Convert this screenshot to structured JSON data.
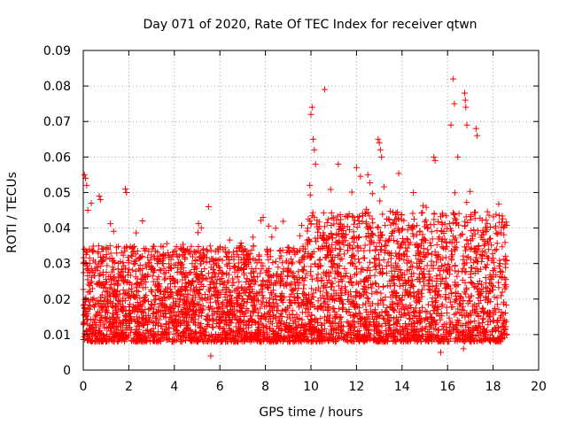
{
  "chart_data": {
    "type": "scatter",
    "title": "Day 071 of 2020, Rate Of TEC Index for receiver qtwn",
    "xlabel": "GPS time / hours",
    "ylabel": "ROTI / TECUs",
    "xlim": [
      0,
      20
    ],
    "ylim": [
      0,
      0.09
    ],
    "xticks": [
      "0",
      "2",
      "4",
      "6",
      "8",
      "10",
      "12",
      "14",
      "16",
      "18",
      "20"
    ],
    "yticks": [
      "0",
      "0.01",
      "0.02",
      "0.03",
      "0.04",
      "0.05",
      "0.06",
      "0.07",
      "0.08",
      "0.09"
    ],
    "grid": true,
    "marker": "+",
    "color": "#ff0000",
    "series": [
      {
        "name": "ROTI",
        "hour_range": [
          0,
          18.6
        ],
        "typical_band": [
          0.008,
          0.035
        ],
        "highlights": [
          {
            "x": 0.05,
            "y": 0.055
          },
          {
            "x": 0.1,
            "y": 0.054
          },
          {
            "x": 0.15,
            "y": 0.052
          },
          {
            "x": 0.2,
            "y": 0.045
          },
          {
            "x": 0.35,
            "y": 0.047
          },
          {
            "x": 0.7,
            "y": 0.049
          },
          {
            "x": 0.75,
            "y": 0.048
          },
          {
            "x": 1.85,
            "y": 0.051
          },
          {
            "x": 1.9,
            "y": 0.05
          },
          {
            "x": 2.6,
            "y": 0.042
          },
          {
            "x": 5.5,
            "y": 0.046
          },
          {
            "x": 7.9,
            "y": 0.043
          },
          {
            "x": 10.0,
            "y": 0.072
          },
          {
            "x": 10.05,
            "y": 0.074
          },
          {
            "x": 10.1,
            "y": 0.065
          },
          {
            "x": 10.15,
            "y": 0.062
          },
          {
            "x": 10.2,
            "y": 0.058
          },
          {
            "x": 10.6,
            "y": 0.079
          },
          {
            "x": 11.2,
            "y": 0.058
          },
          {
            "x": 12.0,
            "y": 0.057
          },
          {
            "x": 12.95,
            "y": 0.065
          },
          {
            "x": 13.0,
            "y": 0.064
          },
          {
            "x": 13.05,
            "y": 0.062
          },
          {
            "x": 13.1,
            "y": 0.06
          },
          {
            "x": 15.4,
            "y": 0.06
          },
          {
            "x": 15.45,
            "y": 0.059
          },
          {
            "x": 16.15,
            "y": 0.069
          },
          {
            "x": 16.25,
            "y": 0.082
          },
          {
            "x": 16.3,
            "y": 0.075
          },
          {
            "x": 16.45,
            "y": 0.06
          },
          {
            "x": 16.75,
            "y": 0.078
          },
          {
            "x": 16.78,
            "y": 0.076
          },
          {
            "x": 16.8,
            "y": 0.074
          },
          {
            "x": 16.85,
            "y": 0.069
          },
          {
            "x": 17.25,
            "y": 0.068
          },
          {
            "x": 17.3,
            "y": 0.066
          },
          {
            "x": 16.7,
            "y": 0.006
          },
          {
            "x": 15.7,
            "y": 0.005
          },
          {
            "x": 5.6,
            "y": 0.004
          },
          {
            "x": 9.95,
            "y": 0.052
          },
          {
            "x": 14.5,
            "y": 0.05
          },
          {
            "x": 12.5,
            "y": 0.055
          }
        ]
      }
    ]
  }
}
